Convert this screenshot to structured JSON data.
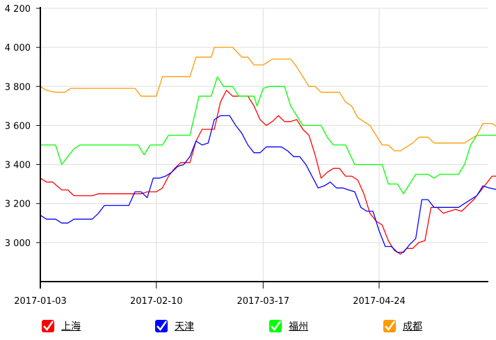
{
  "chart_data": {
    "type": "line",
    "y_ticks": [
      "4 200",
      "4 000",
      "3 800",
      "3 600",
      "3 400",
      "3 200",
      "3 000"
    ],
    "y_tick_values": [
      4200,
      4000,
      3800,
      3600,
      3400,
      3200,
      3000
    ],
    "x_tick_labels": [
      "2017-01-03",
      "2017-02-10",
      "2017-03-17",
      "2017-04-24"
    ],
    "x_tick_dates": [
      "2017-01-03",
      "2017-02-10",
      "2017-03-17",
      "2017-04-24"
    ],
    "x_range": [
      "2017-01-03",
      "2017-05-31"
    ],
    "ylim": [
      2800,
      4200
    ],
    "grid": true,
    "legend_position": "bottom",
    "series": [
      {
        "name": "上海",
        "color": "#ff0000",
        "points": [
          [
            "2017-01-03",
            3330
          ],
          [
            "2017-01-05",
            3310
          ],
          [
            "2017-01-07",
            3310
          ],
          [
            "2017-01-10",
            3270
          ],
          [
            "2017-01-12",
            3270
          ],
          [
            "2017-01-14",
            3240
          ],
          [
            "2017-01-20",
            3240
          ],
          [
            "2017-01-22",
            3250
          ],
          [
            "2017-02-05",
            3250
          ],
          [
            "2017-02-07",
            3260
          ],
          [
            "2017-02-10",
            3260
          ],
          [
            "2017-02-12",
            3280
          ],
          [
            "2017-02-14",
            3340
          ],
          [
            "2017-02-16",
            3380
          ],
          [
            "2017-02-18",
            3410
          ],
          [
            "2017-02-21",
            3410
          ],
          [
            "2017-02-23",
            3520
          ],
          [
            "2017-02-25",
            3580
          ],
          [
            "2017-03-01",
            3580
          ],
          [
            "2017-03-03",
            3720
          ],
          [
            "2017-03-05",
            3780
          ],
          [
            "2017-03-07",
            3750
          ],
          [
            "2017-03-12",
            3750
          ],
          [
            "2017-03-14",
            3700
          ],
          [
            "2017-03-16",
            3630
          ],
          [
            "2017-03-18",
            3600
          ],
          [
            "2017-03-20",
            3620
          ],
          [
            "2017-03-22",
            3650
          ],
          [
            "2017-03-24",
            3620
          ],
          [
            "2017-03-26",
            3620
          ],
          [
            "2017-03-28",
            3630
          ],
          [
            "2017-03-30",
            3580
          ],
          [
            "2017-04-01",
            3550
          ],
          [
            "2017-04-03",
            3450
          ],
          [
            "2017-04-05",
            3330
          ],
          [
            "2017-04-07",
            3360
          ],
          [
            "2017-04-09",
            3380
          ],
          [
            "2017-04-11",
            3380
          ],
          [
            "2017-04-13",
            3340
          ],
          [
            "2017-04-15",
            3340
          ],
          [
            "2017-04-17",
            3320
          ],
          [
            "2017-04-19",
            3250
          ],
          [
            "2017-04-21",
            3150
          ],
          [
            "2017-04-23",
            3110
          ],
          [
            "2017-04-25",
            3090
          ],
          [
            "2017-04-27",
            3010
          ],
          [
            "2017-04-29",
            2960
          ],
          [
            "2017-05-01",
            2940
          ],
          [
            "2017-05-03",
            2970
          ],
          [
            "2017-05-05",
            2970
          ],
          [
            "2017-05-07",
            3000
          ],
          [
            "2017-05-09",
            3010
          ],
          [
            "2017-05-11",
            3180
          ],
          [
            "2017-05-13",
            3180
          ],
          [
            "2017-05-15",
            3150
          ],
          [
            "2017-05-17",
            3160
          ],
          [
            "2017-05-19",
            3170
          ],
          [
            "2017-05-21",
            3160
          ],
          [
            "2017-05-23",
            3190
          ],
          [
            "2017-05-25",
            3220
          ],
          [
            "2017-05-27",
            3260
          ],
          [
            "2017-05-29",
            3300
          ],
          [
            "2017-05-31",
            3340
          ],
          [
            "2017-06-02",
            3340
          ]
        ]
      },
      {
        "name": "天津",
        "color": "#0000ff",
        "points": [
          [
            "2017-01-03",
            3140
          ],
          [
            "2017-01-05",
            3120
          ],
          [
            "2017-01-08",
            3120
          ],
          [
            "2017-01-10",
            3100
          ],
          [
            "2017-01-12",
            3100
          ],
          [
            "2017-01-14",
            3120
          ],
          [
            "2017-01-20",
            3120
          ],
          [
            "2017-01-22",
            3150
          ],
          [
            "2017-01-24",
            3190
          ],
          [
            "2017-02-01",
            3190
          ],
          [
            "2017-02-03",
            3260
          ],
          [
            "2017-02-05",
            3260
          ],
          [
            "2017-02-07",
            3230
          ],
          [
            "2017-02-09",
            3330
          ],
          [
            "2017-02-11",
            3330
          ],
          [
            "2017-02-13",
            3340
          ],
          [
            "2017-02-15",
            3360
          ],
          [
            "2017-02-17",
            3390
          ],
          [
            "2017-02-19",
            3400
          ],
          [
            "2017-02-21",
            3440
          ],
          [
            "2017-02-23",
            3520
          ],
          [
            "2017-02-25",
            3500
          ],
          [
            "2017-02-27",
            3510
          ],
          [
            "2017-03-01",
            3630
          ],
          [
            "2017-03-03",
            3650
          ],
          [
            "2017-03-06",
            3650
          ],
          [
            "2017-03-08",
            3600
          ],
          [
            "2017-03-10",
            3560
          ],
          [
            "2017-03-12",
            3500
          ],
          [
            "2017-03-14",
            3460
          ],
          [
            "2017-03-16",
            3460
          ],
          [
            "2017-03-18",
            3490
          ],
          [
            "2017-03-20",
            3490
          ],
          [
            "2017-03-23",
            3490
          ],
          [
            "2017-03-25",
            3470
          ],
          [
            "2017-03-27",
            3440
          ],
          [
            "2017-03-29",
            3440
          ],
          [
            "2017-03-31",
            3400
          ],
          [
            "2017-04-02",
            3340
          ],
          [
            "2017-04-04",
            3280
          ],
          [
            "2017-04-06",
            3290
          ],
          [
            "2017-04-08",
            3310
          ],
          [
            "2017-04-10",
            3280
          ],
          [
            "2017-04-12",
            3280
          ],
          [
            "2017-04-14",
            3270
          ],
          [
            "2017-04-16",
            3260
          ],
          [
            "2017-04-18",
            3180
          ],
          [
            "2017-04-20",
            3160
          ],
          [
            "2017-04-22",
            3160
          ],
          [
            "2017-04-24",
            3060
          ],
          [
            "2017-04-26",
            2980
          ],
          [
            "2017-04-28",
            2980
          ],
          [
            "2017-04-30",
            2950
          ],
          [
            "2017-05-02",
            2950
          ],
          [
            "2017-05-04",
            2990
          ],
          [
            "2017-05-06",
            3020
          ],
          [
            "2017-05-08",
            3220
          ],
          [
            "2017-05-10",
            3220
          ],
          [
            "2017-05-12",
            3180
          ],
          [
            "2017-05-20",
            3180
          ],
          [
            "2017-05-22",
            3200
          ],
          [
            "2017-05-24",
            3220
          ],
          [
            "2017-05-26",
            3240
          ],
          [
            "2017-05-28",
            3290
          ],
          [
            "2017-05-30",
            3280
          ],
          [
            "2017-06-02",
            3270
          ]
        ]
      },
      {
        "name": "福州",
        "color": "#00ff00",
        "points": [
          [
            "2017-01-03",
            3500
          ],
          [
            "2017-01-08",
            3500
          ],
          [
            "2017-01-10",
            3400
          ],
          [
            "2017-01-12",
            3440
          ],
          [
            "2017-01-14",
            3480
          ],
          [
            "2017-01-16",
            3500
          ],
          [
            "2017-02-01",
            3500
          ],
          [
            "2017-02-04",
            3500
          ],
          [
            "2017-02-06",
            3450
          ],
          [
            "2017-02-08",
            3500
          ],
          [
            "2017-02-12",
            3500
          ],
          [
            "2017-02-14",
            3550
          ],
          [
            "2017-02-21",
            3550
          ],
          [
            "2017-02-24",
            3750
          ],
          [
            "2017-02-28",
            3750
          ],
          [
            "2017-03-02",
            3850
          ],
          [
            "2017-03-04",
            3800
          ],
          [
            "2017-03-07",
            3800
          ],
          [
            "2017-03-09",
            3750
          ],
          [
            "2017-03-14",
            3750
          ],
          [
            "2017-03-15",
            3700
          ],
          [
            "2017-03-17",
            3790
          ],
          [
            "2017-03-19",
            3800
          ],
          [
            "2017-03-24",
            3800
          ],
          [
            "2017-03-26",
            3700
          ],
          [
            "2017-03-28",
            3650
          ],
          [
            "2017-03-30",
            3600
          ],
          [
            "2017-04-05",
            3600
          ],
          [
            "2017-04-07",
            3540
          ],
          [
            "2017-04-09",
            3500
          ],
          [
            "2017-04-13",
            3500
          ],
          [
            "2017-04-16",
            3400
          ],
          [
            "2017-04-25",
            3400
          ],
          [
            "2017-04-27",
            3300
          ],
          [
            "2017-04-30",
            3300
          ],
          [
            "2017-05-02",
            3250
          ],
          [
            "2017-05-04",
            3300
          ],
          [
            "2017-05-06",
            3350
          ],
          [
            "2017-05-10",
            3350
          ],
          [
            "2017-05-12",
            3330
          ],
          [
            "2017-05-14",
            3350
          ],
          [
            "2017-05-20",
            3350
          ],
          [
            "2017-05-22",
            3400
          ],
          [
            "2017-05-24",
            3500
          ],
          [
            "2017-05-26",
            3550
          ],
          [
            "2017-06-02",
            3550
          ]
        ]
      },
      {
        "name": "成都",
        "color": "#ff9900",
        "points": [
          [
            "2017-01-03",
            3800
          ],
          [
            "2017-01-05",
            3780
          ],
          [
            "2017-01-08",
            3770
          ],
          [
            "2017-01-11",
            3770
          ],
          [
            "2017-01-13",
            3790
          ],
          [
            "2017-02-03",
            3790
          ],
          [
            "2017-02-05",
            3750
          ],
          [
            "2017-02-10",
            3750
          ],
          [
            "2017-02-12",
            3850
          ],
          [
            "2017-02-21",
            3850
          ],
          [
            "2017-02-23",
            3950
          ],
          [
            "2017-02-28",
            3950
          ],
          [
            "2017-03-01",
            4000
          ],
          [
            "2017-03-07",
            4000
          ],
          [
            "2017-03-10",
            3950
          ],
          [
            "2017-03-12",
            3950
          ],
          [
            "2017-03-14",
            3910
          ],
          [
            "2017-03-17",
            3910
          ],
          [
            "2017-03-20",
            3940
          ],
          [
            "2017-03-26",
            3940
          ],
          [
            "2017-03-28",
            3900
          ],
          [
            "2017-03-30",
            3850
          ],
          [
            "2017-04-01",
            3800
          ],
          [
            "2017-04-03",
            3800
          ],
          [
            "2017-04-05",
            3770
          ],
          [
            "2017-04-11",
            3770
          ],
          [
            "2017-04-13",
            3720
          ],
          [
            "2017-04-15",
            3700
          ],
          [
            "2017-04-17",
            3640
          ],
          [
            "2017-04-19",
            3620
          ],
          [
            "2017-04-21",
            3600
          ],
          [
            "2017-04-23",
            3550
          ],
          [
            "2017-04-25",
            3500
          ],
          [
            "2017-04-27",
            3500
          ],
          [
            "2017-04-29",
            3470
          ],
          [
            "2017-05-01",
            3470
          ],
          [
            "2017-05-03",
            3490
          ],
          [
            "2017-05-05",
            3510
          ],
          [
            "2017-05-07",
            3540
          ],
          [
            "2017-05-10",
            3540
          ],
          [
            "2017-05-12",
            3510
          ],
          [
            "2017-05-22",
            3510
          ],
          [
            "2017-05-24",
            3530
          ],
          [
            "2017-05-26",
            3550
          ],
          [
            "2017-05-28",
            3610
          ],
          [
            "2017-05-31",
            3610
          ],
          [
            "2017-06-02",
            3590
          ]
        ]
      }
    ]
  },
  "legend": {
    "items": [
      {
        "label": "上海",
        "color": "#ff0000"
      },
      {
        "label": "天津",
        "color": "#0000ff"
      },
      {
        "label": "福州",
        "color": "#00ff00"
      },
      {
        "label": "成都",
        "color": "#ff9900"
      }
    ]
  }
}
